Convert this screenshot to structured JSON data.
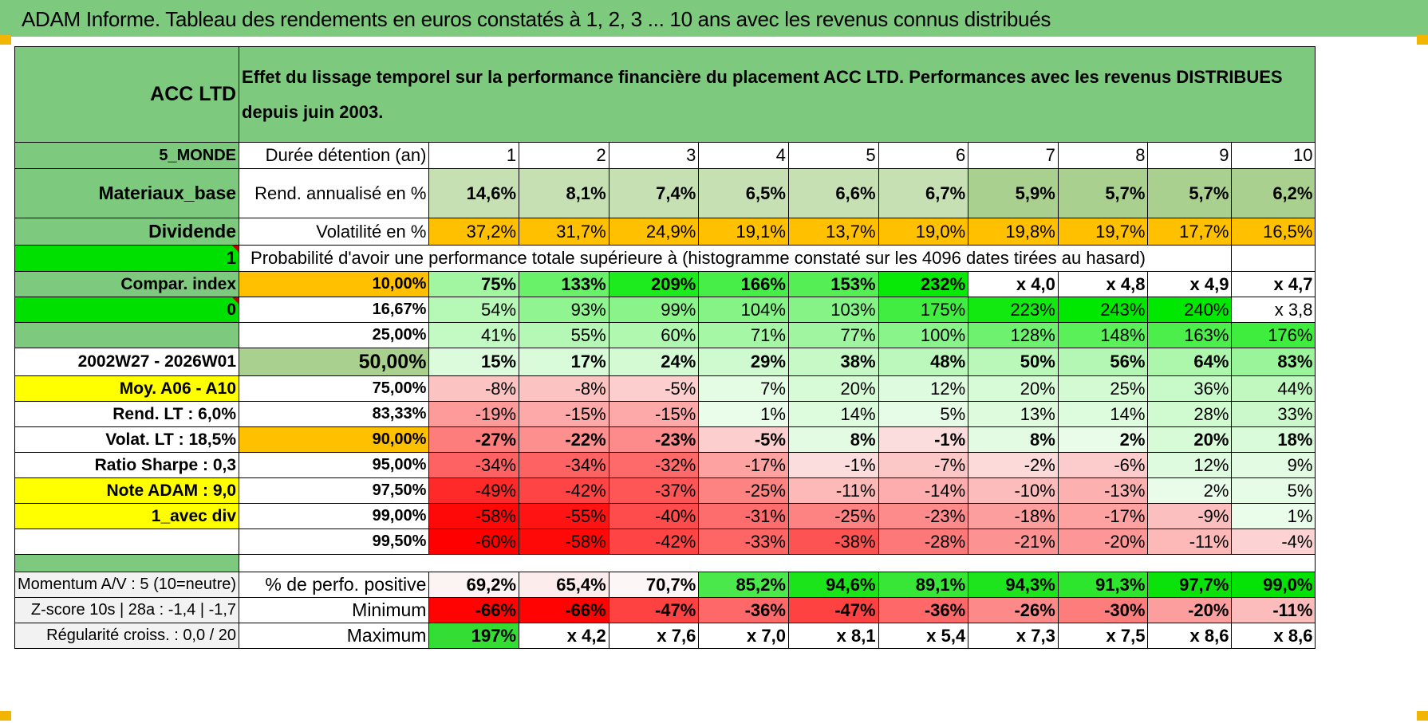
{
  "title": "ADAM Informe. Tableau des rendements en euros constatés à 1, 2, 3 ... 10 ans avec les revenus connus distribués",
  "fund": {
    "name": "ACC LTD",
    "description": "Effet du lissage temporel sur la performance financière du placement ACC LTD. Performances avec les revenus DISTRIBUES depuis juin 2003.",
    "region": "5_MONDE",
    "sector": "Materiaux_base",
    "income": "Dividende",
    "flag_1": "1",
    "compar_index": "Compar. index",
    "flag_0": "0",
    "period": "2002W27 - 2026W01",
    "moy": "Moy. A06 - A10",
    "rend_lt": "Rend. LT :   6,0%",
    "volat_lt": "Volat. LT :   18,5%",
    "sharpe": "Ratio Sharpe :    0,3",
    "note": "Note ADAM : 9,0",
    "div_mode": "1_avec div"
  },
  "row_labels": {
    "duree": "Durée détention (an)",
    "rend": "Rend. annualisé en %",
    "vol": "Volatilité en %",
    "proba": "Probabilité d'avoir une performance totale supérieure à (histogramme constaté sur les 4096 dates tirées au hasard)",
    "positive": "% de perfo. positive",
    "minimum": "Minimum",
    "maximum": "Maximum"
  },
  "years": [
    "1",
    "2",
    "3",
    "4",
    "5",
    "6",
    "7",
    "8",
    "9",
    "10"
  ],
  "rend": [
    "14,6%",
    "8,1%",
    "7,4%",
    "6,5%",
    "6,6%",
    "6,7%",
    "5,9%",
    "5,7%",
    "5,7%",
    "6,2%"
  ],
  "vol": [
    "37,2%",
    "31,7%",
    "24,9%",
    "19,1%",
    "13,7%",
    "19,0%",
    "19,8%",
    "19,7%",
    "17,7%",
    "16,5%"
  ],
  "quantiles": [
    {
      "p": "10,00%",
      "v": [
        "75%",
        "133%",
        "209%",
        "166%",
        "153%",
        "232%",
        "x 4,0",
        "x 4,8",
        "x 4,9",
        "x 4,7"
      ]
    },
    {
      "p": "16,67%",
      "v": [
        "54%",
        "93%",
        "99%",
        "104%",
        "103%",
        "175%",
        "223%",
        "243%",
        "240%",
        "x 3,8"
      ]
    },
    {
      "p": "25,00%",
      "v": [
        "41%",
        "55%",
        "60%",
        "71%",
        "77%",
        "100%",
        "128%",
        "148%",
        "163%",
        "176%"
      ]
    },
    {
      "p": "50,00%",
      "v": [
        "15%",
        "17%",
        "24%",
        "29%",
        "38%",
        "48%",
        "50%",
        "56%",
        "64%",
        "83%"
      ]
    },
    {
      "p": "75,00%",
      "v": [
        "-8%",
        "-8%",
        "-5%",
        "7%",
        "20%",
        "12%",
        "20%",
        "25%",
        "36%",
        "44%"
      ]
    },
    {
      "p": "83,33%",
      "v": [
        "-19%",
        "-15%",
        "-15%",
        "1%",
        "14%",
        "5%",
        "13%",
        "14%",
        "28%",
        "33%"
      ]
    },
    {
      "p": "90,00%",
      "v": [
        "-27%",
        "-22%",
        "-23%",
        "-5%",
        "8%",
        "-1%",
        "8%",
        "2%",
        "20%",
        "18%"
      ]
    },
    {
      "p": "95,00%",
      "v": [
        "-34%",
        "-34%",
        "-32%",
        "-17%",
        "-1%",
        "-7%",
        "-2%",
        "-6%",
        "12%",
        "9%"
      ]
    },
    {
      "p": "97,50%",
      "v": [
        "-49%",
        "-42%",
        "-37%",
        "-25%",
        "-11%",
        "-14%",
        "-10%",
        "-13%",
        "2%",
        "5%"
      ]
    },
    {
      "p": "99,00%",
      "v": [
        "-58%",
        "-55%",
        "-40%",
        "-31%",
        "-25%",
        "-23%",
        "-18%",
        "-17%",
        "-9%",
        "1%"
      ]
    },
    {
      "p": "99,50%",
      "v": [
        "-60%",
        "-58%",
        "-42%",
        "-33%",
        "-38%",
        "-28%",
        "-21%",
        "-20%",
        "-11%",
        "-4%"
      ]
    }
  ],
  "stats": {
    "momentum": "Momentum A/V : 5 (10=neutre)",
    "zscore": "Z-score 10s | 28a : -1,4 | -1,7",
    "regularite": "Régularité croiss. : 0,0 / 20",
    "positive": [
      "69,2%",
      "65,4%",
      "70,7%",
      "85,2%",
      "94,6%",
      "89,1%",
      "94,3%",
      "91,3%",
      "97,7%",
      "99,0%"
    ],
    "minimum": [
      "-66%",
      "-66%",
      "-47%",
      "-36%",
      "-47%",
      "-36%",
      "-26%",
      "-30%",
      "-20%",
      "-11%"
    ],
    "maximum": [
      "197%",
      "x 4,2",
      "x 7,6",
      "x 7,0",
      "x 8,1",
      "x 5,4",
      "x 7,3",
      "x 7,5",
      "x 8,6",
      "x 8,6"
    ]
  },
  "colors": {
    "header_green": "#7dc97d",
    "bright_green": "#00e000",
    "orange": "#ffc000",
    "yellow": "#ffff00",
    "red_label": "#cc0000",
    "light_green": "#c6e0b4"
  }
}
